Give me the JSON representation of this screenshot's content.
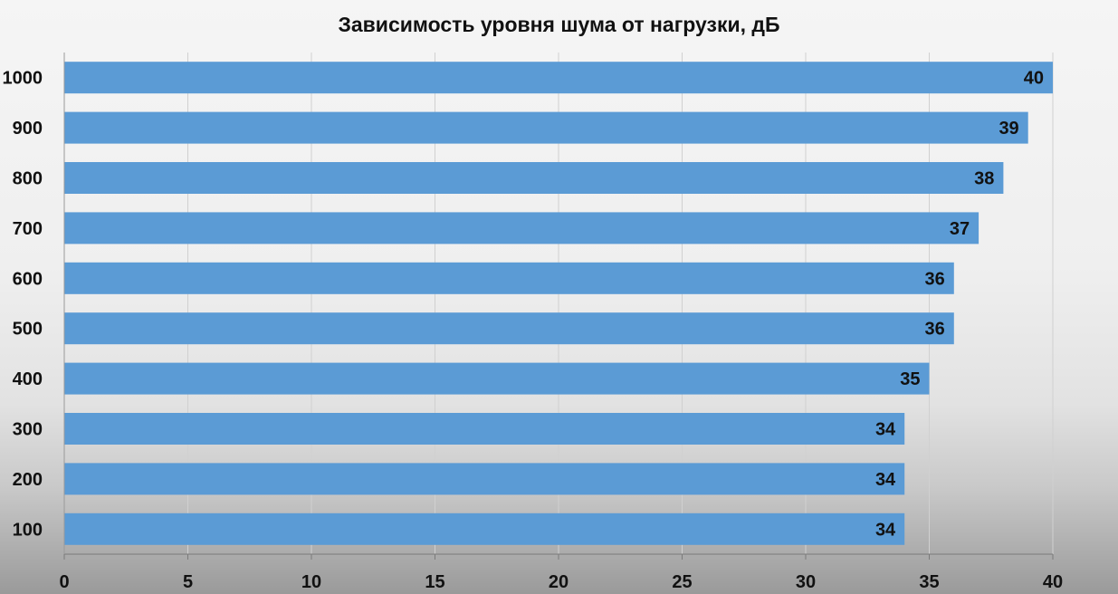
{
  "chart_data": {
    "type": "bar",
    "orientation": "horizontal",
    "title": "Зависимость уровня шума от нагрузки, дБ",
    "categories": [
      "1000",
      "900",
      "800",
      "700",
      "600",
      "500",
      "400",
      "300",
      "200",
      "100"
    ],
    "values": [
      40,
      39,
      38,
      37,
      36,
      36,
      35,
      34,
      34,
      34
    ],
    "xlim": [
      0,
      40
    ],
    "xticks": [
      0,
      5,
      10,
      15,
      20,
      25,
      30,
      35,
      40
    ],
    "grid": "vertical",
    "bar_color": "#5b9bd5",
    "data_labels": true,
    "legend": "none"
  }
}
